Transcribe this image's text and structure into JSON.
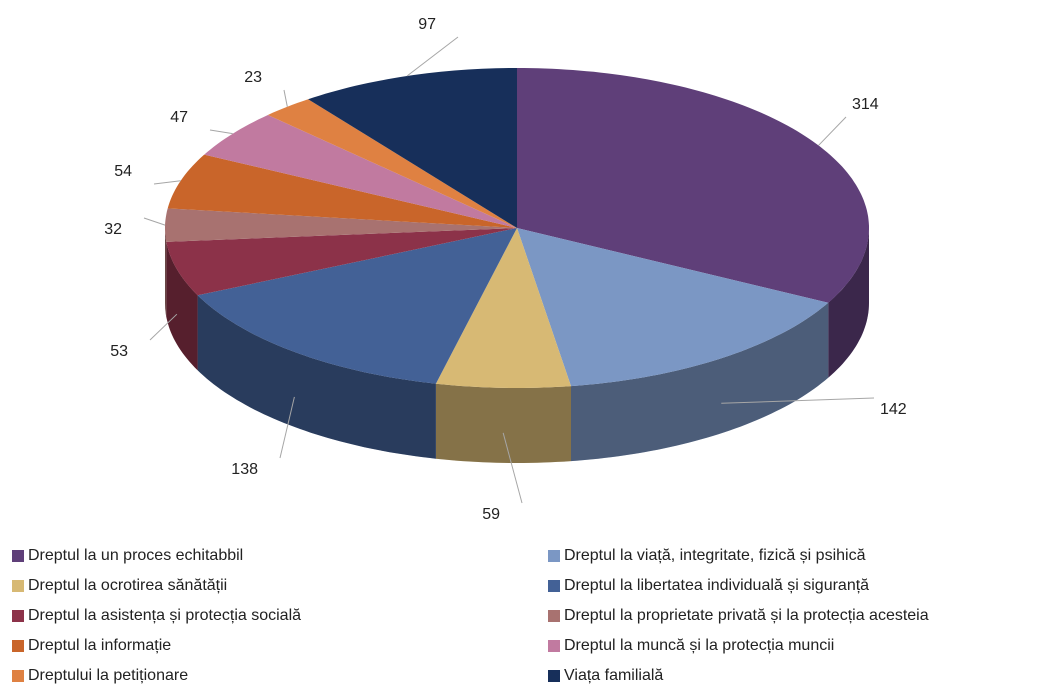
{
  "chart_data": {
    "type": "pie",
    "categories": [
      "Dreptul la un proces echitabbil",
      "Dreptul la viață, integritate, fizică și psihică",
      "Dreptul la ocrotirea sănătății",
      "Dreptul la libertatea individuală și siguranță",
      "Dreptul la asistența și protecția socială",
      "Dreptul la proprietate privată și la protecția acesteia",
      "Dreptul la informație",
      "Dreptul la muncă și la protecția muncii",
      "Dreptului la petiționare",
      "Viața familială"
    ],
    "values": [
      314,
      142,
      59,
      138,
      53,
      32,
      54,
      47,
      23,
      97
    ],
    "colors": [
      "#5f3f79",
      "#7b97c4",
      "#d7b974",
      "#436196",
      "#8c3249",
      "#a87270",
      "#c9652a",
      "#c17aa0",
      "#df8142",
      "#172f5a"
    ],
    "legend": "bottom"
  }
}
